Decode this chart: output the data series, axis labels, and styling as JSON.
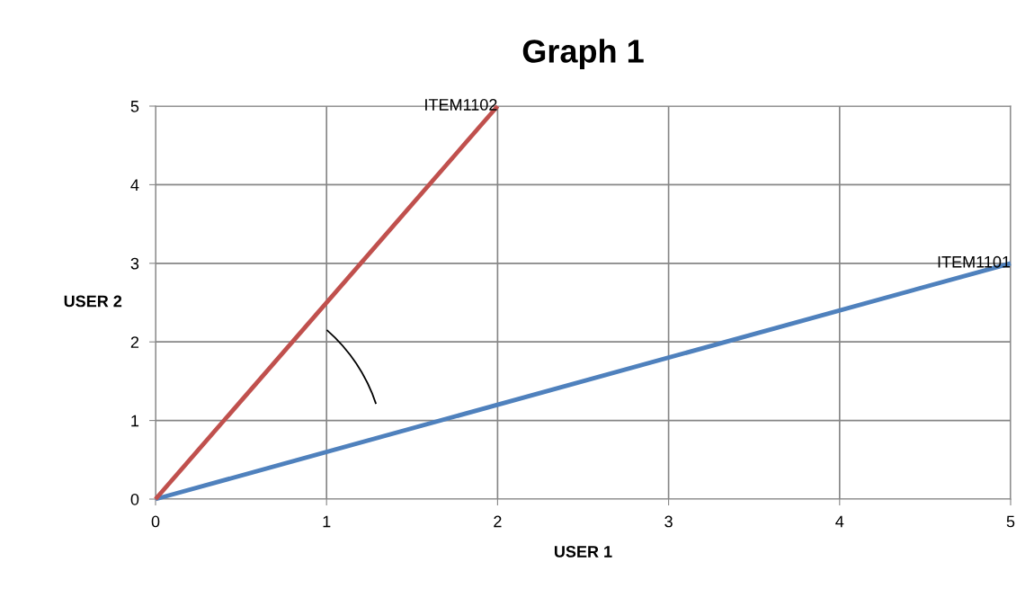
{
  "chart_data": {
    "type": "line",
    "title": "Graph 1",
    "xlabel": "USER 1",
    "ylabel": "USER 2",
    "series": [
      {
        "name": "ITEM1101",
        "color": "#4f81bd",
        "x": [
          0,
          5
        ],
        "values": [
          0,
          3
        ]
      },
      {
        "name": "ITEM1102",
        "color": "#c0504d",
        "x": [
          0,
          2
        ],
        "values": [
          0,
          5
        ]
      }
    ],
    "xlim": [
      0,
      5
    ],
    "ylim": [
      0,
      5
    ],
    "xticks": [
      0,
      1,
      2,
      3,
      4,
      5
    ],
    "yticks": [
      0,
      1,
      2,
      3,
      4,
      5
    ],
    "grid": true,
    "legend": false,
    "marker": "none",
    "line_style": "solid"
  }
}
